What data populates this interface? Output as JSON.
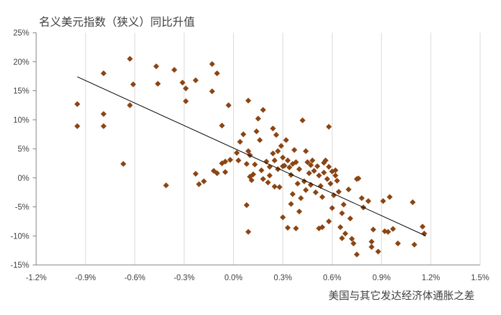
{
  "chart_data": {
    "type": "scatter",
    "title": "名义美元指数（狭义）同比升值",
    "xlabel": "美国与其它发达经济体通胀之差",
    "ylabel": "",
    "xlim": [
      -1.2,
      1.5
    ],
    "ylim": [
      -15,
      25
    ],
    "x_ticks": [
      "-1.2%",
      "-0.9%",
      "-0.6%",
      "-0.3%",
      "0.0%",
      "0.3%",
      "0.6%",
      "0.9%",
      "1.2%",
      "1.5%"
    ],
    "y_ticks": [
      "25%",
      "20%",
      "15%",
      "10%",
      "5%",
      "0%",
      "-5%",
      "-10%",
      "-15%"
    ],
    "grid": "vertical",
    "marker_color": "#8b4513",
    "trendline": {
      "x": [
        -0.95,
        1.17
      ],
      "y": [
        17.4,
        -10.0
      ],
      "color": "#000000"
    },
    "points": [
      [
        -0.95,
        12.7
      ],
      [
        -0.95,
        8.9
      ],
      [
        -0.79,
        18.0
      ],
      [
        -0.79,
        11.0
      ],
      [
        -0.79,
        8.9
      ],
      [
        -0.63,
        20.5
      ],
      [
        -0.63,
        12.5
      ],
      [
        -0.61,
        16.1
      ],
      [
        -0.67,
        2.4
      ],
      [
        -0.47,
        19.2
      ],
      [
        -0.46,
        16.2
      ],
      [
        -0.41,
        -1.3
      ],
      [
        -0.36,
        18.6
      ],
      [
        -0.31,
        16.4
      ],
      [
        -0.29,
        15.4
      ],
      [
        -0.29,
        13.2
      ],
      [
        -0.23,
        16.8
      ],
      [
        -0.23,
        0.7
      ],
      [
        -0.21,
        -1.1
      ],
      [
        -0.18,
        -0.6
      ],
      [
        -0.13,
        19.6
      ],
      [
        -0.13,
        14.9
      ],
      [
        -0.1,
        18.0
      ],
      [
        -0.07,
        9.0
      ],
      [
        -0.03,
        12.5
      ],
      [
        -0.12,
        1.2
      ],
      [
        -0.1,
        0.8
      ],
      [
        -0.07,
        2.5
      ],
      [
        -0.05,
        2.8
      ],
      [
        -0.05,
        1.0
      ],
      [
        -0.02,
        3.1
      ],
      [
        0.02,
        4.3
      ],
      [
        0.03,
        3.0
      ],
      [
        0.04,
        6.2
      ],
      [
        0.06,
        7.5
      ],
      [
        0.08,
        2.4
      ],
      [
        0.09,
        13.3
      ],
      [
        0.09,
        4.6
      ],
      [
        0.1,
        3.9
      ],
      [
        0.1,
        0.2
      ],
      [
        0.11,
        -0.4
      ],
      [
        0.13,
        2.3
      ],
      [
        0.14,
        8.0
      ],
      [
        0.15,
        10.2
      ],
      [
        0.16,
        6.5
      ],
      [
        0.17,
        1.3
      ],
      [
        0.18,
        11.7
      ],
      [
        0.2,
        2.8
      ],
      [
        0.21,
        -0.8
      ],
      [
        0.22,
        0.4
      ],
      [
        0.24,
        8.5
      ],
      [
        0.24,
        4.2
      ],
      [
        0.25,
        3.0
      ],
      [
        0.26,
        7.4
      ],
      [
        0.27,
        1.5
      ],
      [
        0.28,
        -1.6
      ],
      [
        0.29,
        5.5
      ],
      [
        0.3,
        3.5
      ],
      [
        0.31,
        2.1
      ],
      [
        0.32,
        6.5
      ],
      [
        0.33,
        3.0
      ],
      [
        0.34,
        1.8
      ],
      [
        0.35,
        0.5
      ],
      [
        0.36,
        -2.8
      ],
      [
        0.37,
        4.8
      ],
      [
        0.38,
        2.7
      ],
      [
        0.39,
        -1.0
      ],
      [
        0.4,
        1.5
      ],
      [
        0.41,
        -3.5
      ],
      [
        0.42,
        9.9
      ],
      [
        0.43,
        -0.6
      ],
      [
        0.44,
        4.6
      ],
      [
        0.45,
        2.7
      ],
      [
        0.46,
        0.8
      ],
      [
        0.47,
        -1.2
      ],
      [
        0.48,
        3.0
      ],
      [
        0.49,
        1.2
      ],
      [
        0.5,
        -2.5
      ],
      [
        0.51,
        2.0
      ],
      [
        0.52,
        0.4
      ],
      [
        0.53,
        -1.4
      ],
      [
        0.54,
        -3.3
      ],
      [
        0.55,
        0.9
      ],
      [
        0.56,
        3.0
      ],
      [
        0.57,
        -0.2
      ],
      [
        0.58,
        8.8
      ],
      [
        0.58,
        1.9
      ],
      [
        0.59,
        -1.0
      ],
      [
        0.6,
        -5.2
      ],
      [
        0.61,
        -3.0
      ],
      [
        0.62,
        1.3
      ],
      [
        0.63,
        -0.5
      ],
      [
        0.64,
        -2.4
      ],
      [
        0.65,
        -8.5
      ],
      [
        0.66,
        -10.4
      ],
      [
        0.67,
        -4.6
      ],
      [
        0.68,
        -9.6
      ],
      [
        0.7,
        -2.0
      ],
      [
        0.71,
        -7.0
      ],
      [
        0.72,
        -10.5
      ],
      [
        0.73,
        -11.3
      ],
      [
        0.75,
        -13.2
      ],
      [
        0.75,
        -0.2
      ],
      [
        0.78,
        -3.5
      ],
      [
        0.79,
        -5.1
      ],
      [
        0.82,
        -4.0
      ],
      [
        0.84,
        -11.9
      ],
      [
        0.84,
        -11.0
      ],
      [
        0.85,
        -8.9
      ],
      [
        0.88,
        -12.7
      ],
      [
        0.91,
        -4.0
      ],
      [
        0.92,
        -9.2
      ],
      [
        0.94,
        -9.3
      ],
      [
        0.95,
        -3.3
      ],
      [
        0.97,
        -8.8
      ],
      [
        1.0,
        -11.3
      ],
      [
        1.09,
        -4.2
      ],
      [
        1.1,
        -11.5
      ],
      [
        1.15,
        -8.4
      ],
      [
        1.16,
        -9.6
      ],
      [
        0.08,
        -4.7
      ],
      [
        0.09,
        -9.3
      ],
      [
        0.3,
        -6.8
      ],
      [
        0.33,
        -8.6
      ],
      [
        0.38,
        -8.7
      ],
      [
        0.52,
        -8.7
      ],
      [
        0.54,
        -8.5
      ],
      [
        0.58,
        -7.5
      ],
      [
        0.35,
        -4.5
      ],
      [
        0.4,
        -5.8
      ],
      [
        0.25,
        -1.5
      ],
      [
        0.18,
        -0.2
      ],
      [
        0.12,
        0.6
      ],
      [
        0.22,
        1.9
      ],
      [
        0.27,
        4.6
      ],
      [
        0.3,
        2.0
      ],
      [
        0.36,
        2.4
      ],
      [
        0.47,
        2.2
      ],
      [
        0.55,
        2.6
      ],
      [
        0.6,
        1.1
      ],
      [
        0.62,
        0.4
      ],
      [
        0.44,
        -2.1
      ],
      [
        0.66,
        -6.1
      ],
      [
        0.76,
        -0.1
      ]
    ]
  }
}
